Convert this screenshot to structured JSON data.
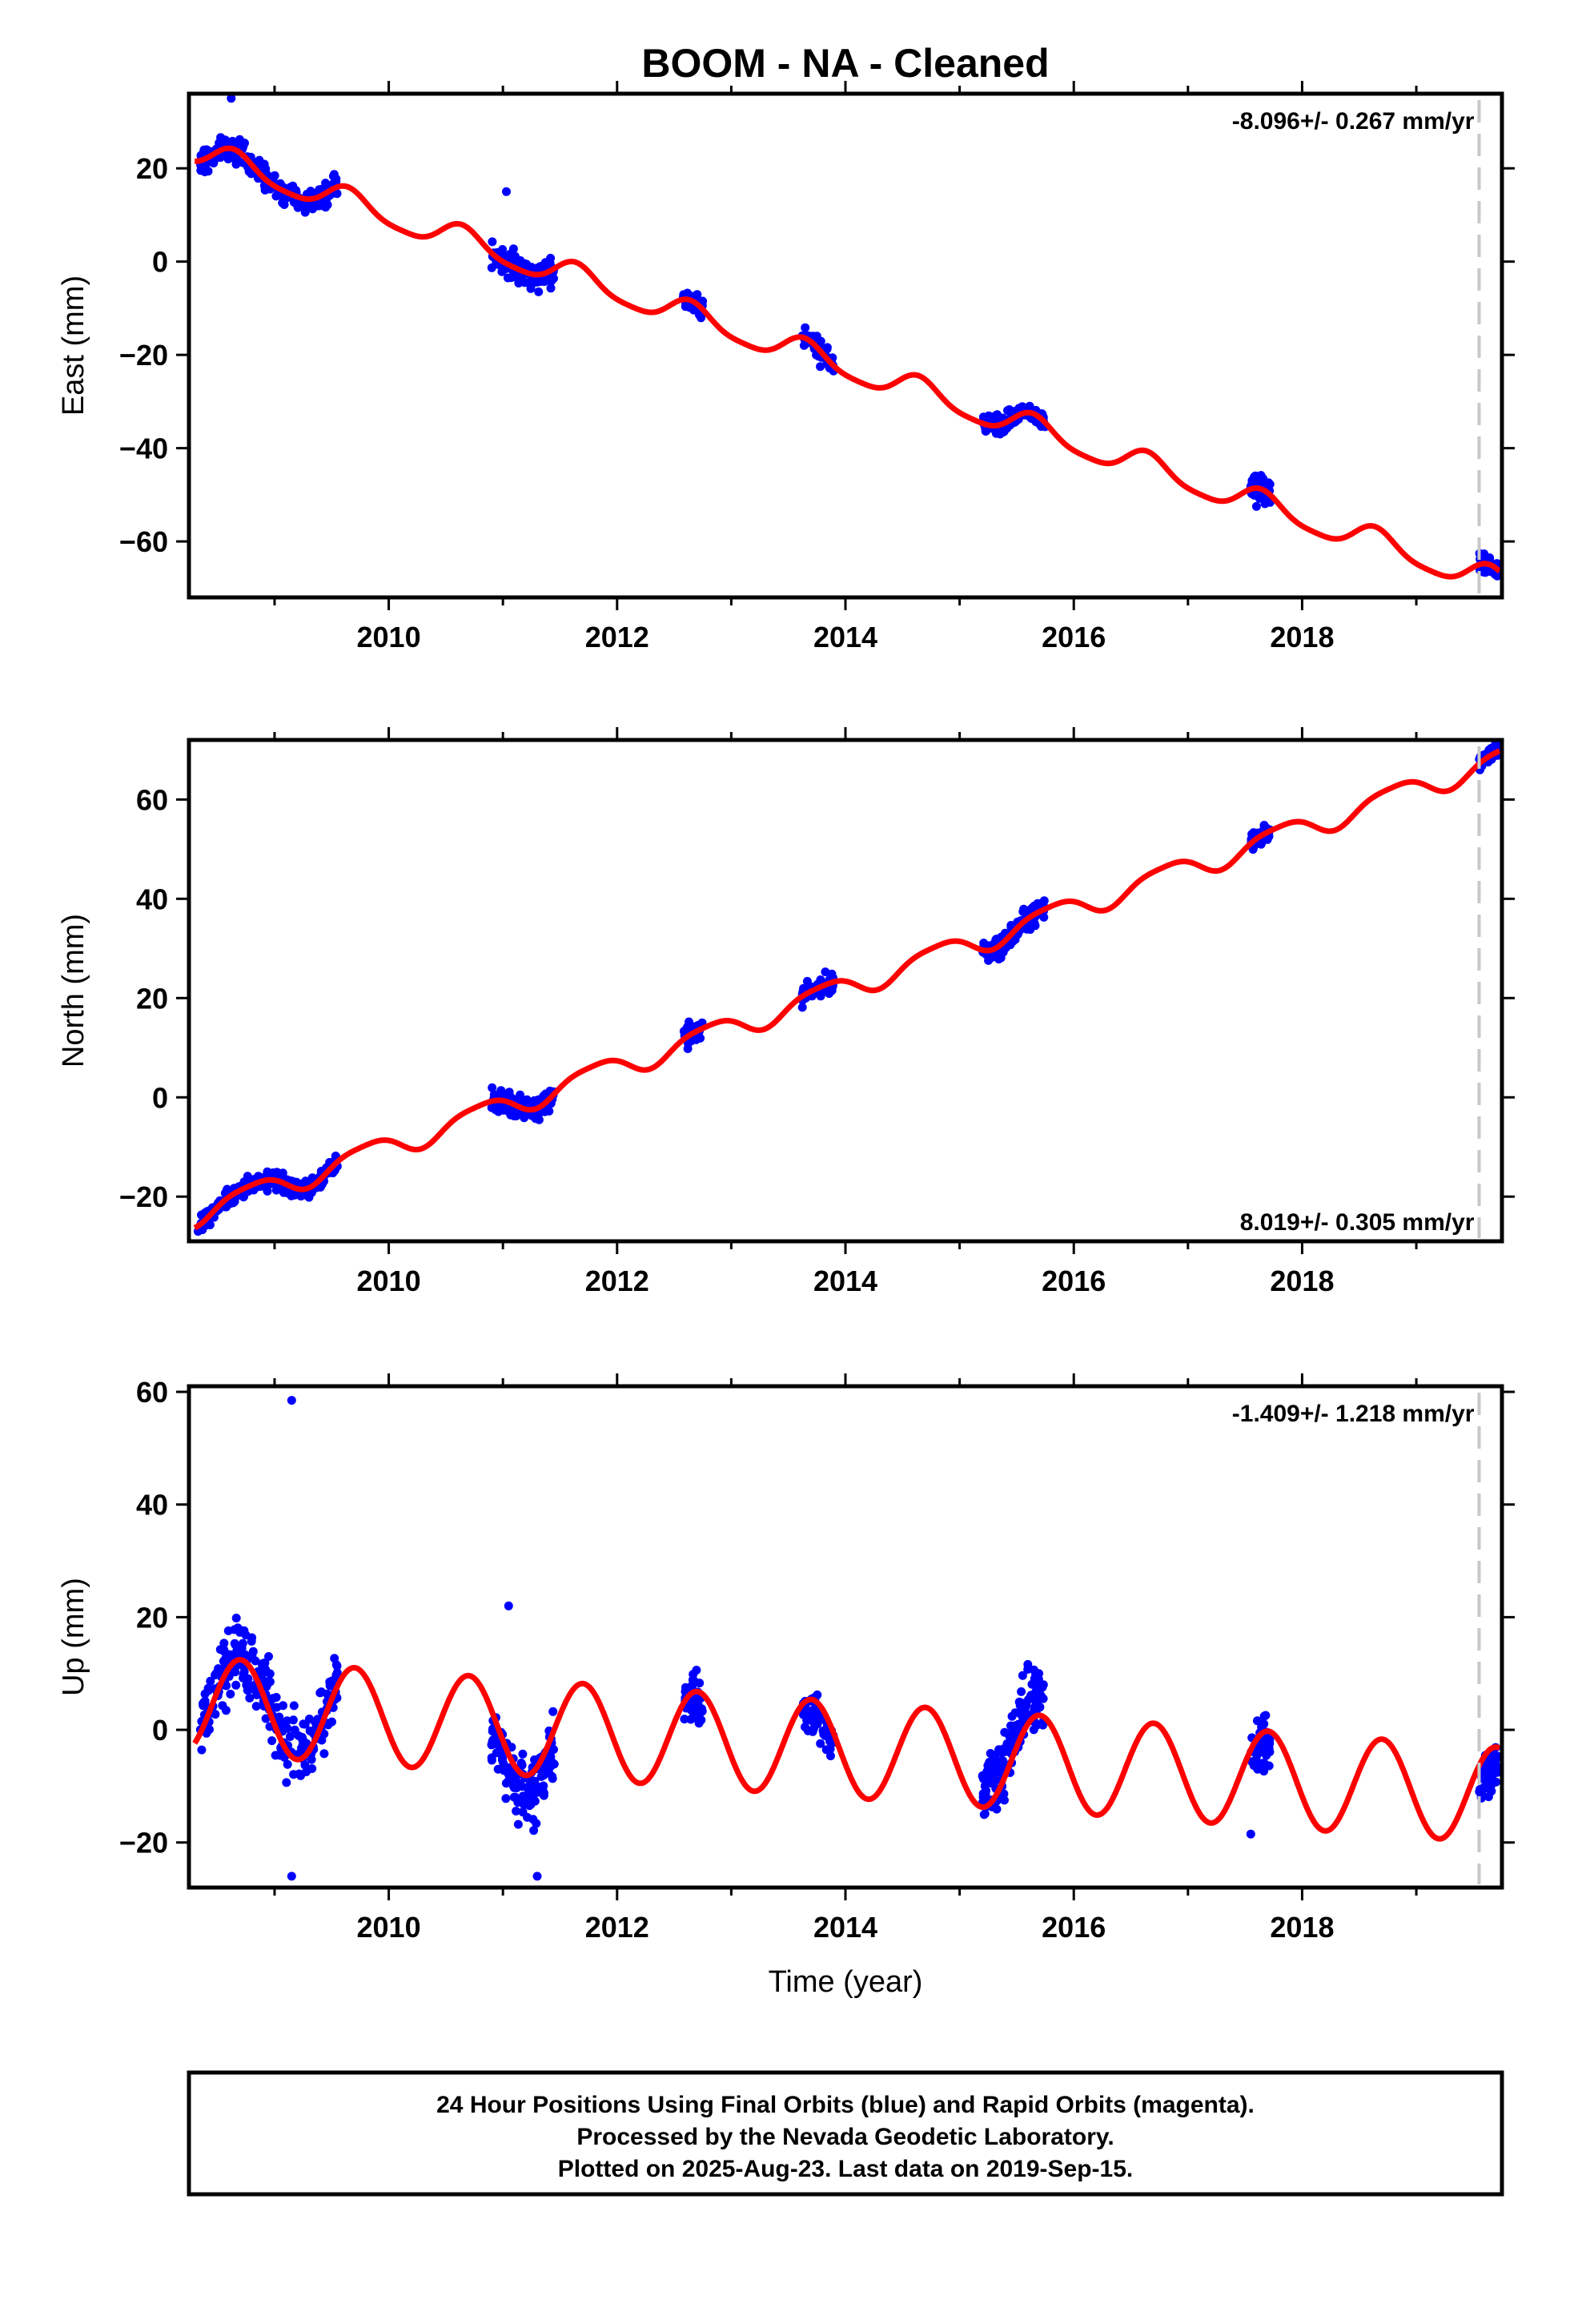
{
  "title": "BOOM  - NA - Cleaned",
  "footer": {
    "line1": "24 Hour Positions Using Final Orbits (blue) and Rapid Orbits (magenta).",
    "line2": "Processed by the Nevada Geodetic Laboratory.",
    "line3": "Plotted on 2025-Aug-23. Last data on 2019-Sep-15."
  },
  "colors": {
    "data": "#0000ff",
    "model": "#ff0000",
    "marker": "#c8c8c8",
    "axis": "#000000"
  },
  "chart_data": [
    {
      "type": "scatter",
      "ylabel": "East (mm)",
      "xlabel": "",
      "rate": "-8.096+/- 0.267 mm/yr",
      "rate_position": "top-right",
      "xlim": [
        2008.25,
        2019.75
      ],
      "ylim": [
        -72,
        36
      ],
      "xticks": [
        2010,
        2012,
        2014,
        2016,
        2018
      ],
      "yticks": [
        20,
        0,
        -20,
        -40,
        -60
      ],
      "ytick_labels": [
        "20",
        "0",
        "−20",
        "−40",
        "−60"
      ],
      "marker_line_x": 2019.55,
      "trend": {
        "t0": 2008.3,
        "y0": 23.5,
        "rate": -8.096
      },
      "annual": {
        "amp": 2.8,
        "phase_year": 2008.4
      },
      "semiannual": {
        "amp": 0.6,
        "phase_year": 2008.5
      },
      "clusters": [
        {
          "start": 2008.35,
          "end": 2009.55,
          "spread": 2.2,
          "count": 260,
          "offset": 0
        },
        {
          "start": 2010.9,
          "end": 2011.45,
          "spread": 2.5,
          "count": 130,
          "offset": 0
        },
        {
          "start": 2012.58,
          "end": 2012.75,
          "spread": 1.8,
          "count": 45,
          "offset": 0
        },
        {
          "start": 2013.62,
          "end": 2013.9,
          "spread": 1.8,
          "count": 55,
          "offset": 0
        },
        {
          "start": 2015.2,
          "end": 2015.75,
          "spread": 1.6,
          "count": 160,
          "offset": 0
        },
        {
          "start": 2017.55,
          "end": 2017.72,
          "spread": 2.0,
          "count": 50,
          "offset": 0
        },
        {
          "start": 2019.55,
          "end": 2019.72,
          "spread": 1.6,
          "count": 50,
          "offset": 0
        }
      ],
      "outliers": [
        [
          2008.62,
          35
        ],
        [
          2011.03,
          15
        ],
        [
          2013.78,
          -22.5
        ],
        [
          2017.6,
          -52.5
        ]
      ]
    },
    {
      "type": "scatter",
      "ylabel": "North (mm)",
      "xlabel": "",
      "rate": "8.019+/- 0.305 mm/yr",
      "rate_position": "bottom-right",
      "xlim": [
        2008.25,
        2019.75
      ],
      "ylim": [
        -29,
        72
      ],
      "xticks": [
        2010,
        2012,
        2014,
        2016,
        2018
      ],
      "yticks": [
        60,
        40,
        20,
        0,
        -20
      ],
      "ytick_labels": [
        "60",
        "40",
        "20",
        "0",
        "−20"
      ],
      "marker_line_x": 2019.55,
      "trend": {
        "t0": 2008.3,
        "y0": -23.5,
        "rate": 8.019
      },
      "annual": {
        "amp": 2.3,
        "phase_year": 2008.55
      },
      "semiannual": {
        "amp": 0.5,
        "phase_year": 2008.4
      },
      "clusters": [
        {
          "start": 2008.35,
          "end": 2009.55,
          "spread": 1.6,
          "count": 260,
          "offset": 0
        },
        {
          "start": 2010.9,
          "end": 2011.45,
          "spread": 2.0,
          "count": 130,
          "offset": 0
        },
        {
          "start": 2012.58,
          "end": 2012.75,
          "spread": 1.6,
          "count": 45,
          "offset": 0
        },
        {
          "start": 2013.62,
          "end": 2013.9,
          "spread": 1.6,
          "count": 55,
          "offset": 0
        },
        {
          "start": 2015.2,
          "end": 2015.75,
          "spread": 1.8,
          "count": 160,
          "offset": 0
        },
        {
          "start": 2017.55,
          "end": 2017.72,
          "spread": 1.5,
          "count": 50,
          "offset": 0
        },
        {
          "start": 2019.55,
          "end": 2019.72,
          "spread": 1.5,
          "count": 50,
          "offset": 0
        }
      ],
      "outliers": [
        [
          2008.33,
          -27
        ]
      ]
    },
    {
      "type": "scatter",
      "ylabel": "Up (mm)",
      "xlabel": "Time (year)",
      "rate": "-1.409+/- 1.218 mm/yr",
      "rate_position": "top-right",
      "xlim": [
        2008.25,
        2019.75
      ],
      "ylim": [
        -28,
        61
      ],
      "xticks": [
        2010,
        2012,
        2014,
        2016,
        2018
      ],
      "yticks": [
        60,
        40,
        20,
        0,
        -20
      ],
      "ytick_labels": [
        "60",
        "40",
        "20",
        "0",
        "−20"
      ],
      "marker_line_x": 2019.55,
      "trend": {
        "t0": 2008.3,
        "y0": 4.5,
        "rate": -1.409
      },
      "annual": {
        "amp": 8.5,
        "phase_year": 2008.45
      },
      "semiannual": {
        "amp": 0,
        "phase_year": 2008.4
      },
      "clusters": [
        {
          "start": 2008.35,
          "end": 2009.55,
          "spread": 5.0,
          "count": 260,
          "offset": 1
        },
        {
          "start": 2010.9,
          "end": 2011.45,
          "spread": 5.0,
          "count": 150,
          "offset": -3
        },
        {
          "start": 2012.58,
          "end": 2012.75,
          "spread": 4.0,
          "count": 45,
          "offset": -1
        },
        {
          "start": 2013.62,
          "end": 2013.9,
          "spread": 3.5,
          "count": 55,
          "offset": -2
        },
        {
          "start": 2015.2,
          "end": 2015.75,
          "spread": 4.5,
          "count": 170,
          "offset": 3
        },
        {
          "start": 2017.55,
          "end": 2017.72,
          "spread": 4.0,
          "count": 50,
          "offset": -2
        },
        {
          "start": 2019.55,
          "end": 2019.72,
          "spread": 4.0,
          "count": 50,
          "offset": -3
        }
      ],
      "outliers": [
        [
          2009.15,
          58.5
        ],
        [
          2009.15,
          -26
        ],
        [
          2011.05,
          22
        ],
        [
          2011.3,
          -26
        ],
        [
          2017.55,
          -18.5
        ]
      ]
    }
  ]
}
